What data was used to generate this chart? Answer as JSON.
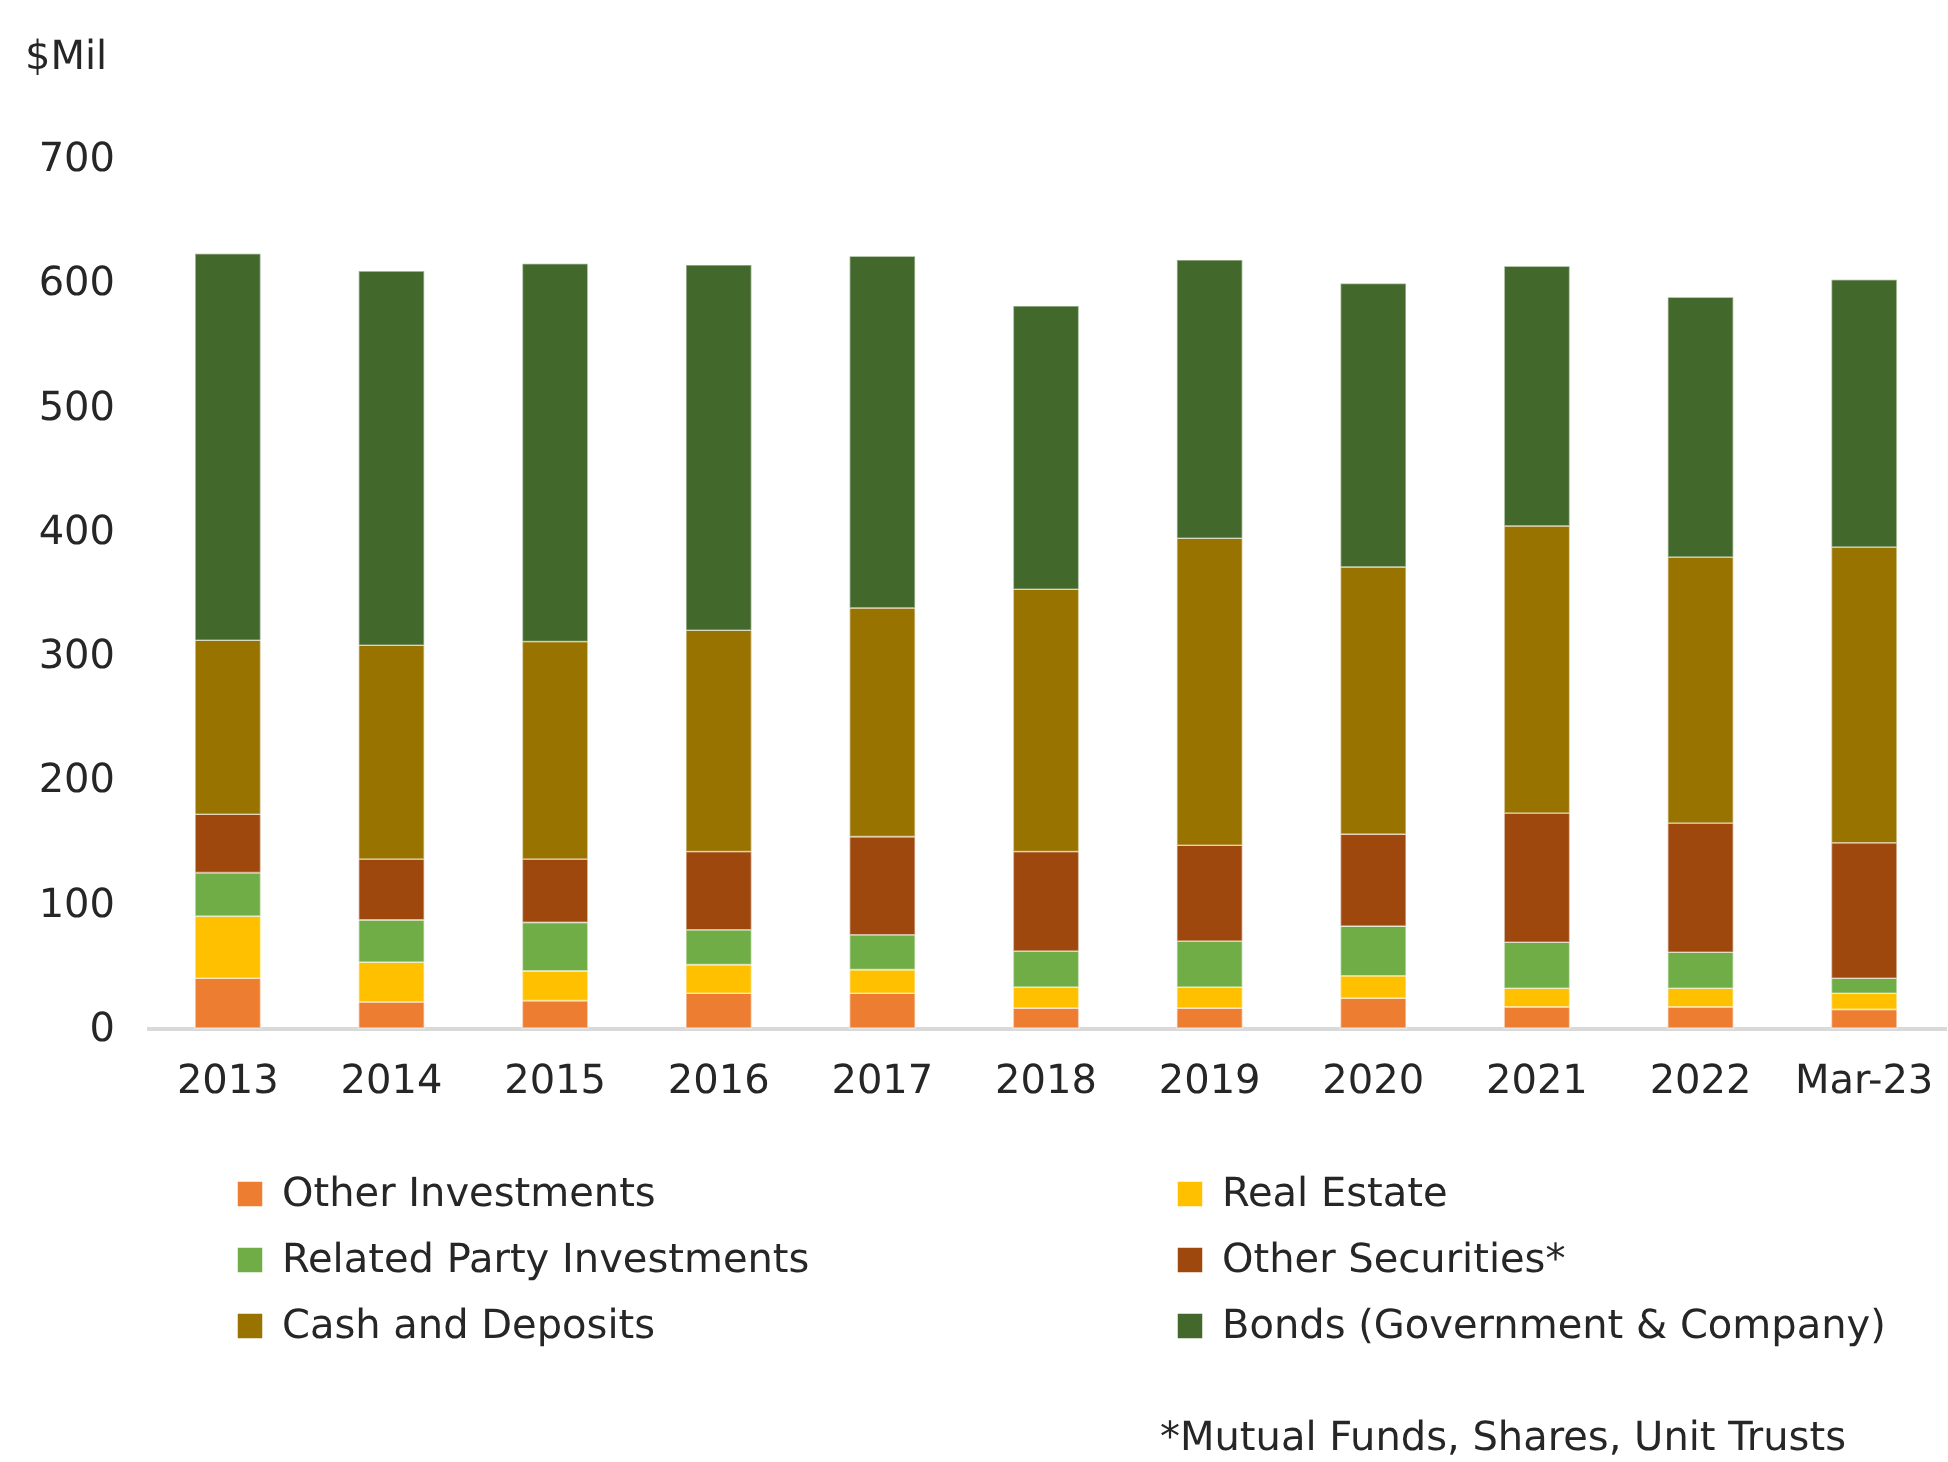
{
  "chart_data": {
    "type": "bar",
    "stacked": true,
    "ylabel": "$Mil",
    "categories": [
      "2013",
      "2014",
      "2015",
      "2016",
      "2017",
      "2018",
      "2019",
      "2020",
      "2021",
      "2022",
      "Mar-23"
    ],
    "series": [
      {
        "name": "Other Investments",
        "color": "#ed7d31",
        "values": [
          40,
          21,
          22,
          28,
          28,
          16,
          16,
          24,
          17,
          17,
          15
        ]
      },
      {
        "name": "Real Estate",
        "color": "#ffc000",
        "values": [
          50,
          32,
          24,
          23,
          19,
          17,
          17,
          18,
          15,
          15,
          13
        ]
      },
      {
        "name": "Related Party Investments",
        "color": "#70ad47",
        "values": [
          35,
          34,
          39,
          28,
          28,
          29,
          37,
          40,
          37,
          29,
          12
        ]
      },
      {
        "name": "Other Securities*",
        "color": "#9e480e",
        "values": [
          47,
          49,
          51,
          63,
          79,
          80,
          77,
          74,
          104,
          104,
          109
        ]
      },
      {
        "name": "Cash and Deposits",
        "color": "#997300",
        "values": [
          140,
          172,
          175,
          178,
          184,
          211,
          247,
          215,
          231,
          214,
          238
        ]
      },
      {
        "name": "Bonds (Government & Company)",
        "color": "#43682b",
        "values": [
          311,
          301,
          304,
          294,
          283,
          228,
          224,
          228,
          209,
          209,
          215
        ]
      }
    ],
    "ylim": [
      0,
      700
    ],
    "yticks": [
      0,
      100,
      200,
      300,
      400,
      500,
      600,
      700
    ],
    "legend": "bottom",
    "annotations": [
      "*Mutual Funds, Shares, Unit Trusts"
    ]
  }
}
